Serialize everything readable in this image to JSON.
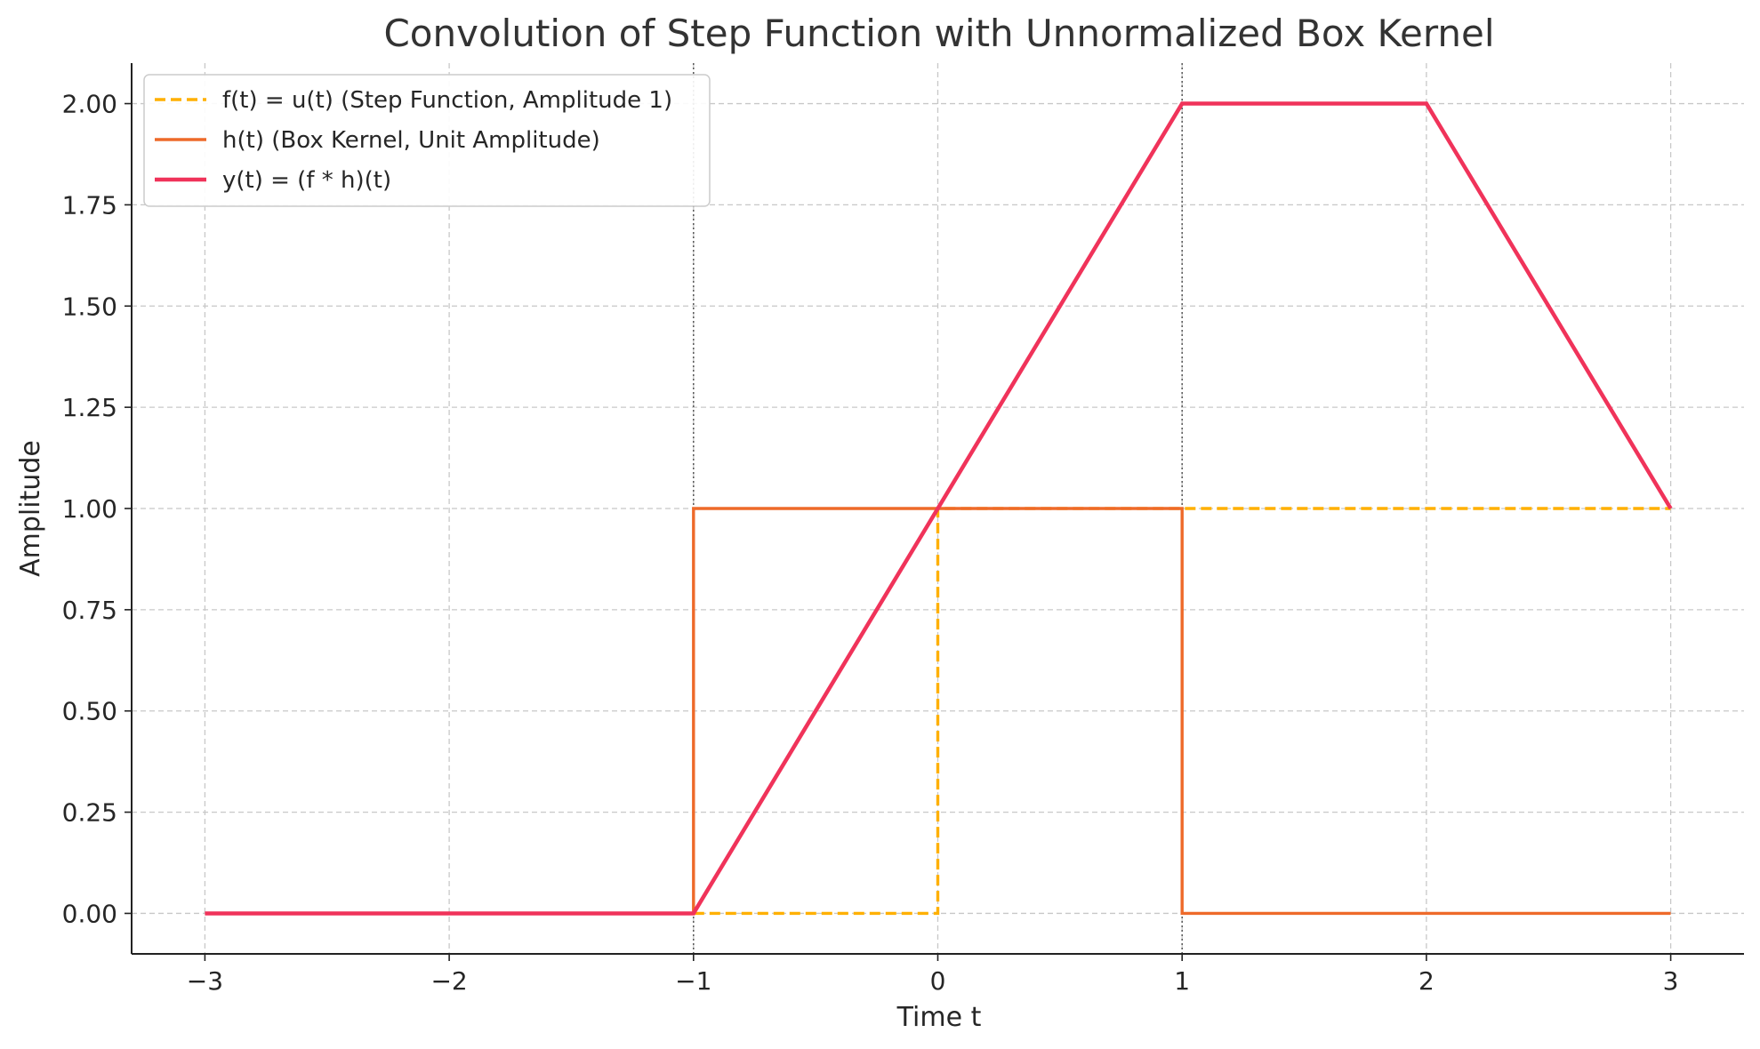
{
  "chart_data": {
    "type": "line",
    "title": "Convolution of Step Function with Unnormalized Box Kernel",
    "xlabel": "Time t",
    "ylabel": "Amplitude",
    "xlim": [
      -3.3,
      3.3
    ],
    "ylim": [
      -0.1,
      2.1
    ],
    "x_ticks": [
      -3,
      -2,
      -1,
      0,
      1,
      2,
      3
    ],
    "x_tick_labels": [
      "−3",
      "−2",
      "−1",
      "0",
      "1",
      "2",
      "3"
    ],
    "y_ticks": [
      0,
      0.25,
      0.5,
      0.75,
      1.0,
      1.25,
      1.5,
      1.75,
      2.0
    ],
    "y_tick_labels": [
      "0.00",
      "0.25",
      "0.50",
      "0.75",
      "1.00",
      "1.25",
      "1.50",
      "1.75",
      "2.00"
    ],
    "grid": true,
    "legend_position": "top-left",
    "vertical_markers": [
      -1,
      1
    ],
    "series": [
      {
        "name": "f(t) = u(t) (Step Function, Amplitude 1)",
        "color": "#FFB000",
        "style": "dashed",
        "points": [
          [
            -1,
            0
          ],
          [
            0,
            0
          ],
          [
            0,
            1
          ],
          [
            3,
            1
          ]
        ]
      },
      {
        "name": "h(t) (Box Kernel, Unit Amplitude)",
        "color": "#EE6A2A",
        "style": "solid",
        "points": [
          [
            -1,
            0
          ],
          [
            -1,
            1
          ],
          [
            1,
            1
          ],
          [
            1,
            0
          ],
          [
            3,
            0
          ]
        ]
      },
      {
        "name": "y(t) = (f * h)(t)",
        "color": "#F0335A",
        "style": "solid-thick",
        "points": [
          [
            -3,
            0
          ],
          [
            -1,
            0
          ],
          [
            1,
            2
          ],
          [
            2,
            2
          ],
          [
            3,
            1
          ]
        ]
      }
    ]
  }
}
